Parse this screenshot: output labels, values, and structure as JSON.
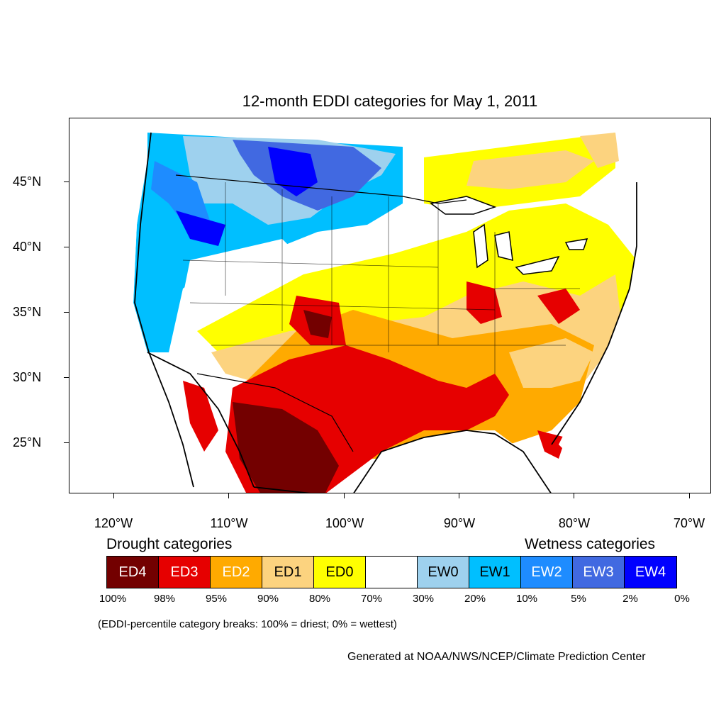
{
  "title": "12-month EDDI categories for May 1, 2011",
  "axes": {
    "lat_labels": [
      "45°N",
      "40°N",
      "35°N",
      "30°N",
      "25°N"
    ],
    "lon_labels": [
      "120°W",
      "110°W",
      "100°W",
      "90°W",
      "80°W",
      "70°W"
    ]
  },
  "legend": {
    "drought_heading": "Drought categories",
    "wetness_heading": "Wetness categories",
    "categories": [
      {
        "label": "ED4",
        "color": "#730000",
        "text_color": "#ffffff"
      },
      {
        "label": "ED3",
        "color": "#e60000",
        "text_color": "#ffffff"
      },
      {
        "label": "ED2",
        "color": "#ffaa00",
        "text_color": "#ffffff"
      },
      {
        "label": "ED1",
        "color": "#fcd37f",
        "text_color": "#000000"
      },
      {
        "label": "ED0",
        "color": "#ffff00",
        "text_color": "#000000"
      },
      {
        "label": "",
        "color": "#ffffff",
        "text_color": "#000000"
      },
      {
        "label": "EW0",
        "color": "#9ed1ee",
        "text_color": "#000000"
      },
      {
        "label": "EW1",
        "color": "#00bfff",
        "text_color": "#000000"
      },
      {
        "label": "EW2",
        "color": "#1e8cff",
        "text_color": "#ffffff"
      },
      {
        "label": "EW3",
        "color": "#4169e1",
        "text_color": "#ffffff"
      },
      {
        "label": "EW4",
        "color": "#0000ff",
        "text_color": "#ffffff"
      }
    ],
    "breaks": [
      "100%",
      "98%",
      "95%",
      "90%",
      "80%",
      "70%",
      "30%",
      "20%",
      "10%",
      "5%",
      "2%",
      "0%"
    ]
  },
  "note": "(EDDI-percentile category breaks: 100% = driest; 0% = wettest)",
  "credit": "Generated at NOAA/NWS/NCEP/Climate Prediction Center"
}
